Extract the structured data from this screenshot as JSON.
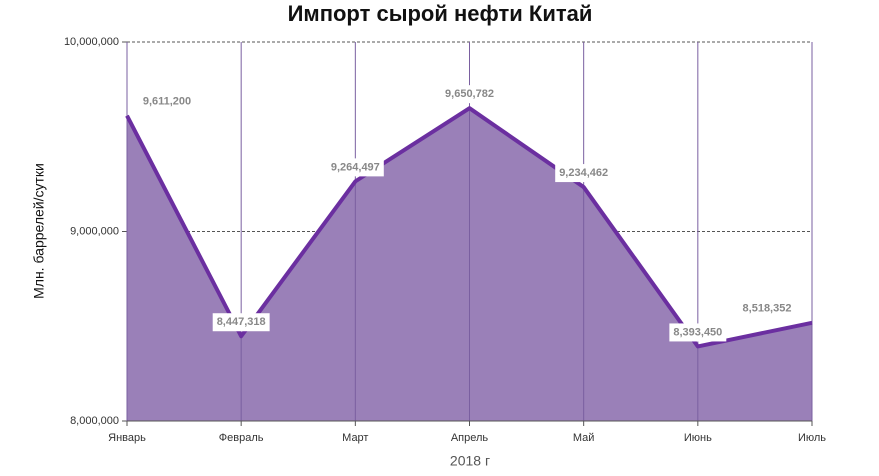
{
  "chart_data": {
    "type": "area",
    "title": "Импорт сырой нефти Китай",
    "x_label": "2018 г",
    "y_label": "Млн. баррелей/сутки",
    "categories": [
      "Январь",
      "Февраль",
      "Март",
      "Апрель",
      "Май",
      "Июнь",
      "Июль"
    ],
    "values": [
      9611200,
      8447318,
      9264497,
      9650782,
      9234462,
      8393450,
      8518352
    ],
    "value_labels": [
      "9,611,200",
      "8,447,318",
      "9,264,497",
      "9,650,782",
      "9,234,462",
      "8,393,450",
      "8,518,352"
    ],
    "color": "#6b2fa0",
    "fill": "#9a80b8",
    "ylim": [
      8000000,
      10000000
    ],
    "yticks": [
      {
        "value": 8000000,
        "label": "8,000,000"
      },
      {
        "value": 9000000,
        "label": "9,000,000"
      },
      {
        "value": 10000000,
        "label": "10,000,000"
      }
    ],
    "grid": true
  }
}
